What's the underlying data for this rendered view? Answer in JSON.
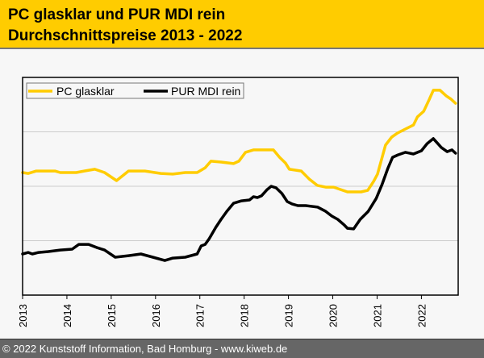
{
  "header": {
    "title_line1": "PC glasklar und PUR MDI rein",
    "title_line2": "Durchschnittspreise 2013 - 2022"
  },
  "footer": {
    "copyright": "© 2022 Kunststoff Information, Bad Homburg - www.kiweb.de"
  },
  "colors": {
    "header_bg": "#ffcc00",
    "pc": "#ffcc00",
    "pur": "#000000"
  },
  "chart_data": {
    "type": "line",
    "title": "PC glasklar und PUR MDI rein Durchschnittspreise 2013 - 2022",
    "xlabel": "",
    "ylabel": "",
    "y_units": "relative index (no y-axis labels shown)",
    "xlim": [
      2013,
      2022.83
    ],
    "ylim": [
      0,
      100
    ],
    "y_gridlines": [
      25,
      50,
      75
    ],
    "x_ticks": [
      "2013",
      "2014",
      "2015",
      "2016",
      "2017",
      "2018",
      "2019",
      "2020",
      "2021",
      "2022"
    ],
    "legend": {
      "position": "top-left",
      "entries": [
        "PC glasklar",
        "PUR MDI rein"
      ]
    },
    "series": [
      {
        "name": "PC glasklar",
        "color": "#ffcc00",
        "x": [
          2013.0,
          2013.13,
          2013.31,
          2013.73,
          2013.85,
          2014.21,
          2014.39,
          2014.63,
          2014.85,
          2015.12,
          2015.39,
          2015.76,
          2016.12,
          2016.39,
          2016.67,
          2016.94,
          2017.12,
          2017.25,
          2017.48,
          2017.76,
          2017.88,
          2018.03,
          2018.21,
          2018.34,
          2018.66,
          2018.8,
          2018.93,
          2019.02,
          2019.29,
          2019.47,
          2019.65,
          2019.84,
          2020.02,
          2020.33,
          2020.64,
          2020.79,
          2020.92,
          2021.01,
          2021.19,
          2021.33,
          2021.46,
          2021.64,
          2021.82,
          2021.91,
          2022.05,
          2022.18,
          2022.27,
          2022.42,
          2022.56,
          2022.67,
          2022.77
        ],
        "values": [
          56.3,
          55.9,
          57.0,
          57.0,
          56.3,
          56.3,
          57.0,
          57.8,
          56.3,
          52.6,
          57.0,
          57.0,
          55.9,
          55.6,
          56.3,
          56.3,
          58.5,
          61.5,
          61.1,
          60.4,
          61.5,
          65.6,
          66.7,
          66.7,
          66.7,
          63.3,
          60.7,
          57.8,
          57.0,
          53.3,
          50.4,
          49.6,
          49.6,
          47.4,
          47.4,
          48.1,
          52.2,
          55.6,
          68.9,
          72.6,
          74.4,
          76.3,
          78.1,
          81.9,
          84.4,
          90.0,
          94.1,
          94.1,
          91.5,
          90.0,
          88.1
        ]
      },
      {
        "name": "PUR MDI rein",
        "color": "#000000",
        "x": [
          2013.0,
          2013.13,
          2013.22,
          2013.36,
          2013.58,
          2013.85,
          2014.12,
          2014.27,
          2014.49,
          2014.67,
          2014.85,
          2015.09,
          2015.39,
          2015.67,
          2015.94,
          2016.21,
          2016.39,
          2016.67,
          2016.94,
          2017.03,
          2017.12,
          2017.21,
          2017.36,
          2017.48,
          2017.61,
          2017.76,
          2017.94,
          2018.12,
          2018.21,
          2018.3,
          2018.39,
          2018.52,
          2018.61,
          2018.72,
          2018.85,
          2018.97,
          2019.08,
          2019.21,
          2019.39,
          2019.66,
          2019.84,
          2019.98,
          2020.11,
          2020.26,
          2020.33,
          2020.47,
          2020.62,
          2020.8,
          2020.98,
          2021.11,
          2021.24,
          2021.35,
          2021.47,
          2021.64,
          2021.82,
          2022.0,
          2022.13,
          2022.27,
          2022.45,
          2022.58,
          2022.69,
          2022.77
        ],
        "values": [
          18.9,
          19.6,
          18.9,
          19.6,
          20.0,
          20.7,
          21.1,
          23.3,
          23.3,
          21.9,
          20.7,
          17.4,
          18.1,
          18.9,
          17.4,
          15.9,
          17.0,
          17.4,
          18.9,
          22.6,
          23.3,
          25.9,
          31.1,
          34.8,
          38.5,
          42.2,
          43.3,
          43.7,
          45.2,
          44.8,
          45.6,
          48.5,
          50.0,
          49.3,
          46.7,
          43.0,
          41.9,
          41.1,
          41.1,
          40.4,
          38.5,
          36.3,
          34.8,
          32.2,
          30.7,
          30.4,
          34.8,
          38.5,
          44.4,
          50.7,
          58.1,
          63.3,
          64.4,
          65.6,
          64.8,
          66.3,
          69.6,
          71.9,
          67.8,
          65.9,
          66.7,
          65.2
        ]
      }
    ]
  }
}
